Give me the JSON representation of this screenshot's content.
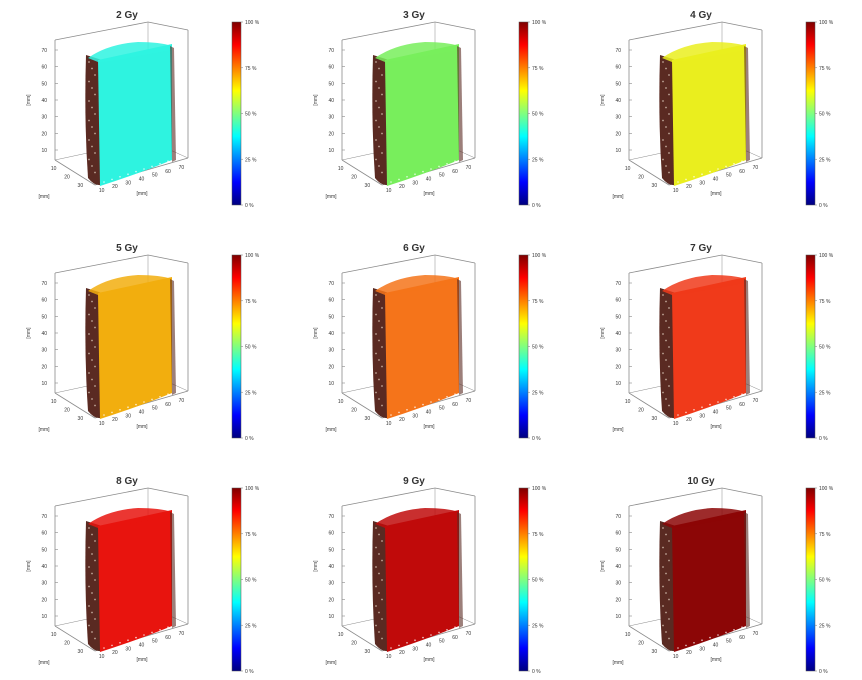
{
  "chart_data": [
    {
      "type": "3d-volume",
      "title": "2 Gy",
      "dose_percent": 25,
      "surface_color": "#2ef3e0",
      "xlabel": "[mm]",
      "ylabel": "[mm]",
      "zlabel": "[mm]",
      "z_ticks": [
        "10",
        "20",
        "30",
        "40",
        "50",
        "60",
        "70"
      ],
      "x_ticks": [
        "10",
        "20",
        "30",
        "40",
        "50",
        "60",
        "70"
      ],
      "y_ticks": [
        "10",
        "20",
        "30"
      ],
      "colorbar": {
        "min": 0,
        "max": 100,
        "unit": "%",
        "ticks": [
          "0 %",
          "25 %",
          "50 %",
          "75 %",
          "100 %"
        ]
      }
    },
    {
      "type": "3d-volume",
      "title": "3 Gy",
      "dose_percent": 38,
      "surface_color": "#78ee5c",
      "xlabel": "[mm]",
      "ylabel": "[mm]",
      "zlabel": "[mm]",
      "z_ticks": [
        "10",
        "20",
        "30",
        "40",
        "50",
        "60",
        "70"
      ],
      "x_ticks": [
        "10",
        "20",
        "30",
        "40",
        "50",
        "60",
        "70"
      ],
      "y_ticks": [
        "10",
        "20",
        "30"
      ],
      "colorbar": {
        "min": 0,
        "max": 100,
        "unit": "%",
        "ticks": [
          "0 %",
          "25 %",
          "50 %",
          "75 %",
          "100 %"
        ]
      }
    },
    {
      "type": "3d-volume",
      "title": "4 Gy",
      "dose_percent": 50,
      "surface_color": "#eaee1e",
      "xlabel": "[mm]",
      "ylabel": "[mm]",
      "zlabel": "[mm]",
      "z_ticks": [
        "10",
        "20",
        "30",
        "40",
        "50",
        "60",
        "70"
      ],
      "x_ticks": [
        "10",
        "20",
        "30",
        "40",
        "50",
        "60",
        "70"
      ],
      "y_ticks": [
        "10",
        "20",
        "30"
      ],
      "colorbar": {
        "min": 0,
        "max": 100,
        "unit": "%",
        "ticks": [
          "0 %",
          "25 %",
          "50 %",
          "75 %",
          "100 %"
        ]
      }
    },
    {
      "type": "3d-volume",
      "title": "5 Gy",
      "dose_percent": 62,
      "surface_color": "#f2ae0e",
      "xlabel": "[mm]",
      "ylabel": "[mm]",
      "zlabel": "[mm]",
      "z_ticks": [
        "10",
        "20",
        "30",
        "40",
        "50",
        "60",
        "70"
      ],
      "x_ticks": [
        "10",
        "20",
        "30",
        "40",
        "50",
        "60",
        "70"
      ],
      "y_ticks": [
        "10",
        "20",
        "30"
      ],
      "colorbar": {
        "min": 0,
        "max": 100,
        "unit": "%",
        "ticks": [
          "0 %",
          "25 %",
          "50 %",
          "75 %",
          "100 %"
        ]
      }
    },
    {
      "type": "3d-volume",
      "title": "6 Gy",
      "dose_percent": 75,
      "surface_color": "#f5741a",
      "xlabel": "[mm]",
      "ylabel": "[mm]",
      "zlabel": "[mm]",
      "z_ticks": [
        "10",
        "20",
        "30",
        "40",
        "50",
        "60",
        "70"
      ],
      "x_ticks": [
        "10",
        "20",
        "30",
        "40",
        "50",
        "60",
        "70"
      ],
      "y_ticks": [
        "10",
        "20",
        "30"
      ],
      "colorbar": {
        "min": 0,
        "max": 100,
        "unit": "%",
        "ticks": [
          "0 %",
          "25 %",
          "50 %",
          "75 %",
          "100 %"
        ]
      }
    },
    {
      "type": "3d-volume",
      "title": "7 Gy",
      "dose_percent": 85,
      "surface_color": "#f03a1a",
      "xlabel": "[mm]",
      "ylabel": "[mm]",
      "zlabel": "[mm]",
      "z_ticks": [
        "10",
        "20",
        "30",
        "40",
        "50",
        "60",
        "70"
      ],
      "x_ticks": [
        "10",
        "20",
        "30",
        "40",
        "50",
        "60",
        "70"
      ],
      "y_ticks": [
        "10",
        "20",
        "30"
      ],
      "colorbar": {
        "min": 0,
        "max": 100,
        "unit": "%",
        "ticks": [
          "0 %",
          "25 %",
          "50 %",
          "75 %",
          "100 %"
        ]
      }
    },
    {
      "type": "3d-volume",
      "title": "8 Gy",
      "dose_percent": 90,
      "surface_color": "#e8140e",
      "xlabel": "[mm]",
      "ylabel": "[mm]",
      "zlabel": "[mm]",
      "z_ticks": [
        "10",
        "20",
        "30",
        "40",
        "50",
        "60",
        "70"
      ],
      "x_ticks": [
        "10",
        "20",
        "30",
        "40",
        "50",
        "60",
        "70"
      ],
      "y_ticks": [
        "10",
        "20",
        "30"
      ],
      "colorbar": {
        "min": 0,
        "max": 100,
        "unit": "%",
        "ticks": [
          "0 %",
          "25 %",
          "50 %",
          "75 %",
          "100 %"
        ]
      }
    },
    {
      "type": "3d-volume",
      "title": "9 Gy",
      "dose_percent": 95,
      "surface_color": "#c00a0a",
      "xlabel": "[mm]",
      "ylabel": "[mm]",
      "zlabel": "[mm]",
      "z_ticks": [
        "10",
        "20",
        "30",
        "40",
        "50",
        "60",
        "70"
      ],
      "x_ticks": [
        "10",
        "20",
        "30",
        "40",
        "50",
        "60",
        "70"
      ],
      "y_ticks": [
        "10",
        "20",
        "30"
      ],
      "colorbar": {
        "min": 0,
        "max": 100,
        "unit": "%",
        "ticks": [
          "0 %",
          "25 %",
          "50 %",
          "75 %",
          "100 %"
        ]
      }
    },
    {
      "type": "3d-volume",
      "title": "10 Gy",
      "dose_percent": 99,
      "surface_color": "#8c0606",
      "xlabel": "[mm]",
      "ylabel": "[mm]",
      "zlabel": "[mm]",
      "z_ticks": [
        "10",
        "20",
        "30",
        "40",
        "50",
        "60",
        "70"
      ],
      "x_ticks": [
        "10",
        "20",
        "30",
        "40",
        "50",
        "60",
        "70"
      ],
      "y_ticks": [
        "10",
        "20",
        "30"
      ],
      "colorbar": {
        "min": 0,
        "max": 100,
        "unit": "%",
        "ticks": [
          "0 %",
          "25 %",
          "50 %",
          "75 %",
          "100 %"
        ]
      }
    }
  ],
  "style": {
    "bark_color": "#5a2a22",
    "axis_color": "#8a8a8a",
    "text_color": "#333333"
  }
}
